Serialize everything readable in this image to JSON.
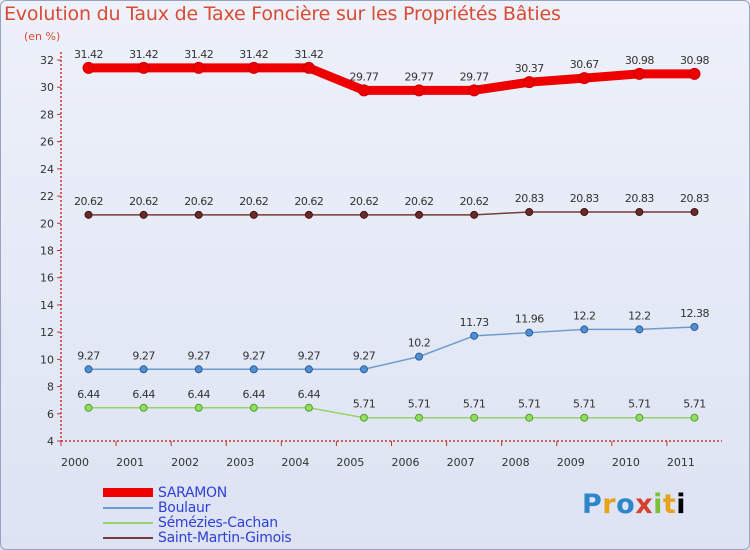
{
  "chart_data": {
    "type": "line",
    "title": "Evolution du Taux de Taxe Foncière sur les Propriétés Bâties",
    "ylabel": "(en %)",
    "xlabel": "",
    "categories": [
      "2000",
      "2001",
      "2002",
      "2003",
      "2004",
      "2005",
      "2006",
      "2007",
      "2008",
      "2009",
      "2010",
      "2011"
    ],
    "ylim": [
      4,
      32
    ],
    "yticks": [
      4,
      6,
      8,
      10,
      12,
      14,
      16,
      18,
      20,
      22,
      24,
      26,
      28,
      30,
      32
    ],
    "grid": false,
    "series": [
      {
        "name": "SARAMON",
        "color": "#ee0000",
        "values": [
          31.42,
          31.42,
          31.42,
          31.42,
          31.42,
          29.77,
          29.77,
          29.77,
          30.37,
          30.67,
          30.98,
          30.98
        ],
        "labels": [
          "31.42",
          "31.42",
          "31.42",
          "31.42",
          "31.42",
          "29.77",
          "29.77",
          "29.77",
          "30.37",
          "30.67",
          "30.98",
          "30.98"
        ]
      },
      {
        "name": "Boulaur",
        "color": "#6f9ccf",
        "values": [
          9.27,
          9.27,
          9.27,
          9.27,
          9.27,
          9.27,
          10.2,
          11.73,
          11.96,
          12.2,
          12.2,
          12.38
        ],
        "labels": [
          "9.27",
          "9.27",
          "9.27",
          "9.27",
          "9.27",
          "9.27",
          "10.2",
          "11.73",
          "11.96",
          "12.2",
          "12.2",
          "12.38"
        ]
      },
      {
        "name": "Sémézies-Cachan",
        "color": "#95d36c",
        "values": [
          6.44,
          6.44,
          6.44,
          6.44,
          6.44,
          5.71,
          5.71,
          5.71,
          5.71,
          5.71,
          5.71,
          5.71
        ],
        "labels": [
          "6.44",
          "6.44",
          "6.44",
          "6.44",
          "6.44",
          "5.71",
          "5.71",
          "5.71",
          "5.71",
          "5.71",
          "5.71",
          "5.71"
        ]
      },
      {
        "name": "Saint-Martin-Gimois",
        "color": "#7a3a3a",
        "values": [
          20.62,
          20.62,
          20.62,
          20.62,
          20.62,
          20.62,
          20.62,
          20.62,
          20.83,
          20.83,
          20.83,
          20.83
        ],
        "labels": [
          "20.62",
          "20.62",
          "20.62",
          "20.62",
          "20.62",
          "20.62",
          "20.62",
          "20.62",
          "20.83",
          "20.83",
          "20.83",
          "20.83"
        ]
      }
    ]
  },
  "logo": {
    "letters": [
      "P",
      "r",
      "o",
      "x",
      "i",
      "t",
      "i"
    ]
  }
}
